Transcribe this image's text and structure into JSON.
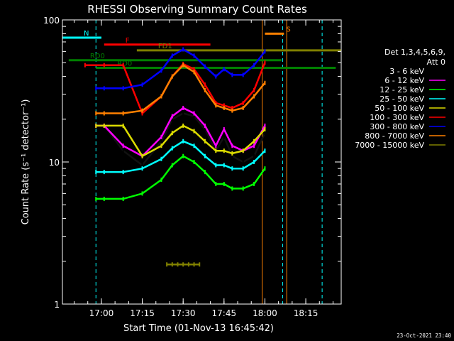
{
  "chart_data": {
    "type": "line",
    "title": "RHESSI Observing Summary Count Rates",
    "xlabel": "Start Time (01-Nov-13 16:45:42)",
    "ylabel": "Count Rate (s⁻¹ detector⁻¹)",
    "y_scale": "log",
    "ylim": [
      1,
      100
    ],
    "xlim": [
      "16:45:42",
      "18:28:00"
    ],
    "x_ticks": [
      "17:00",
      "17:15",
      "17:30",
      "17:45",
      "18:00",
      "18:15"
    ],
    "y_ticks": [
      "1",
      "10",
      "100"
    ],
    "legend_header": [
      "Det 1,3,4,5,6,9,",
      "Att 0"
    ],
    "legend_position": "right",
    "series": [
      {
        "name": "3 - 6 keV",
        "color": "#000000",
        "x": [
          "17:01",
          "17:08",
          "17:15",
          "17:22",
          "17:26",
          "17:30",
          "17:34",
          "17:38",
          "17:42",
          "17:45",
          "17:48",
          "17:52",
          "17:56",
          "18:00"
        ],
        "values": [
          18,
          12,
          9.5,
          14,
          20,
          22,
          21,
          17,
          12,
          15,
          11,
          10,
          11,
          16
        ]
      },
      {
        "name": "6 - 12 keV",
        "color": "#ff00ff",
        "x": [
          "16:58",
          "17:01",
          "17:08",
          "17:15",
          "17:22",
          "17:26",
          "17:30",
          "17:34",
          "17:38",
          "17:42",
          "17:45",
          "17:48",
          "17:52",
          "17:56",
          "18:00"
        ],
        "values": [
          18,
          18,
          13,
          11,
          15,
          21,
          24,
          22,
          18,
          13,
          17,
          13,
          12,
          13,
          18
        ]
      },
      {
        "name": "12 - 25 keV",
        "color": "#00ff00",
        "x": [
          "16:58",
          "17:01",
          "17:08",
          "17:15",
          "17:22",
          "17:26",
          "17:30",
          "17:34",
          "17:38",
          "17:42",
          "17:45",
          "17:48",
          "17:52",
          "17:56",
          "18:00"
        ],
        "values": [
          5.5,
          5.5,
          5.5,
          6,
          7.5,
          9.5,
          11,
          10,
          8.5,
          7,
          7,
          6.5,
          6.5,
          7,
          9
        ]
      },
      {
        "name": "25 - 50 keV",
        "color": "#00ffff",
        "x": [
          "16:58",
          "17:01",
          "17:08",
          "17:15",
          "17:22",
          "17:26",
          "17:30",
          "17:34",
          "17:38",
          "17:42",
          "17:45",
          "17:48",
          "17:52",
          "17:56",
          "18:00"
        ],
        "values": [
          8.5,
          8.5,
          8.5,
          9,
          10.5,
          12.5,
          14,
          13,
          11,
          9.5,
          9.5,
          9,
          9,
          10,
          12
        ]
      },
      {
        "name": "50 - 100 keV",
        "color": "#dcdc00",
        "x": [
          "16:58",
          "17:01",
          "17:08",
          "17:15",
          "17:22",
          "17:26",
          "17:30",
          "17:34",
          "17:38",
          "17:42",
          "17:45",
          "17:48",
          "17:52",
          "17:56",
          "18:00"
        ],
        "values": [
          18,
          18,
          18,
          11,
          13,
          16,
          18,
          16.5,
          14,
          12,
          12,
          11.5,
          12,
          14,
          17
        ]
      },
      {
        "name": "100 - 300 keV",
        "color": "#ff0000",
        "x": [
          "16:54",
          "17:01",
          "17:08",
          "17:15",
          "17:22",
          "17:26",
          "17:30",
          "17:34",
          "17:38",
          "17:42",
          "17:45",
          "17:48",
          "17:52",
          "17:56",
          "18:00"
        ],
        "values": [
          48,
          48,
          48,
          22,
          29,
          40,
          49,
          45,
          35,
          26,
          25,
          24,
          26,
          32,
          50
        ]
      },
      {
        "name": "300 - 800 keV",
        "color": "#0000ff",
        "x": [
          "16:58",
          "17:01",
          "17:08",
          "17:15",
          "17:22",
          "17:26",
          "17:30",
          "17:34",
          "17:38",
          "17:42",
          "17:45",
          "17:48",
          "17:52",
          "17:56",
          "18:00"
        ],
        "values": [
          33,
          33,
          33,
          35,
          44,
          56,
          62,
          56,
          47,
          40,
          45,
          41,
          41,
          48,
          60
        ]
      },
      {
        "name": "800 - 7000 keV",
        "color": "#ff8000",
        "x": [
          "16:58",
          "17:01",
          "17:08",
          "17:15",
          "17:22",
          "17:26",
          "17:30",
          "17:34",
          "17:38",
          "17:42",
          "17:45",
          "17:48",
          "17:52",
          "17:56",
          "18:00"
        ],
        "values": [
          22,
          22,
          22,
          23,
          29,
          40,
          48,
          43,
          32,
          25,
          24,
          23,
          24,
          29,
          36
        ]
      },
      {
        "name": "7000 - 15000 keV",
        "color": "#808000",
        "x": [
          "17:24",
          "17:26",
          "17:28",
          "17:30",
          "17:32",
          "17:34",
          "17:36"
        ],
        "values": [
          1.9,
          1.9,
          1.9,
          1.9,
          1.9,
          1.9,
          1.9
        ]
      }
    ],
    "annotations": [
      {
        "label": "N",
        "color": "#00ffff",
        "x_start": "16:45:42",
        "x_end": "17:00",
        "y": 75
      },
      {
        "label": "F",
        "color": "#ff0000",
        "x_start": "17:01",
        "x_end": "17:40",
        "y": 67
      },
      {
        "label": "FD1",
        "color": "#808000",
        "x_start": "17:13",
        "x_end": "18:28",
        "y": 61
      },
      {
        "label": "RD0",
        "color": "#008000",
        "x_start": "16:48",
        "x_end": "18:06",
        "y": 52
      },
      {
        "label": "RD0",
        "color": "#008000",
        "x_start": "16:58",
        "x_end": "18:26",
        "y": 46
      },
      {
        "label": "S",
        "color": "#ff8000",
        "x_start": "18:00",
        "x_end": "18:07",
        "y": 80
      }
    ],
    "vlines": [
      {
        "x": "16:58",
        "color": "#00ffff",
        "style": "dashed"
      },
      {
        "x": "18:06:30",
        "color": "#00ffff",
        "style": "dashed"
      },
      {
        "x": "18:21",
        "color": "#00ffff",
        "style": "dashed"
      },
      {
        "x": "17:59",
        "color": "#ff8000",
        "style": "solid"
      },
      {
        "x": "18:08",
        "color": "#ff8000",
        "style": "solid"
      }
    ]
  },
  "footer": {
    "timestamp": "23-Oct-2021 23:40"
  }
}
